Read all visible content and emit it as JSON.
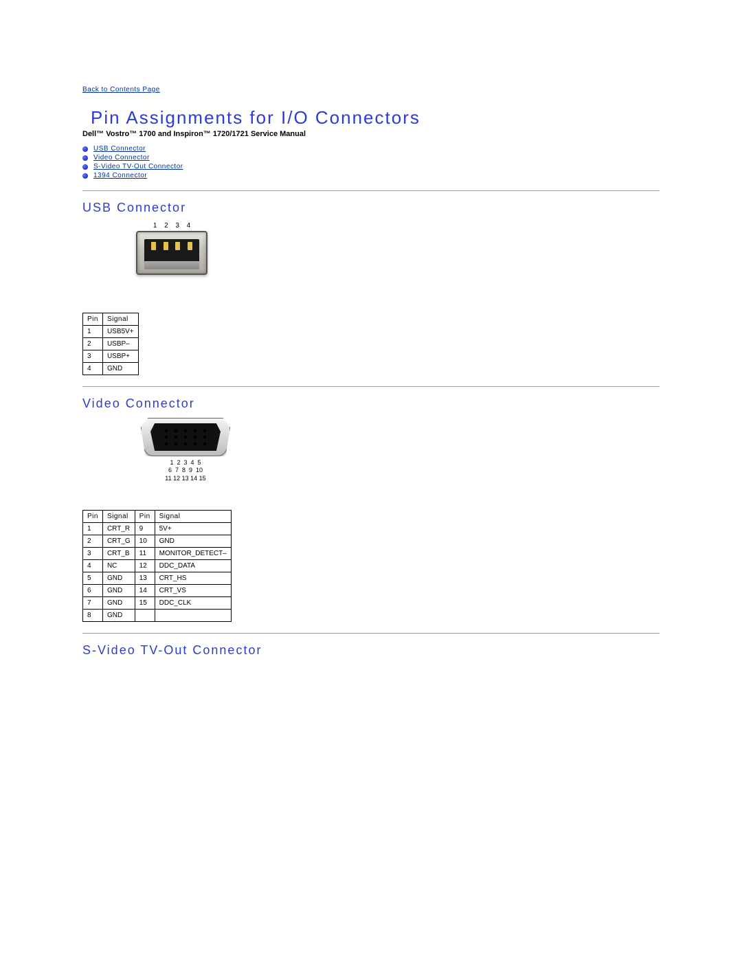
{
  "nav": {
    "back_link": "Back to Contents Page"
  },
  "header": {
    "title": "Pin Assignments for I/O Connectors",
    "subtitle": "Dell™ Vostro™ 1700 and Inspiron™ 1720/1721 Service Manual"
  },
  "toc": [
    "USB Connector",
    "Video Connector",
    "S-Video TV-Out Connector",
    "1394 Connector"
  ],
  "usb": {
    "heading": "USB Connector",
    "pin_header": "Pin",
    "signal_header": "Signal",
    "pin_labels": [
      "1",
      "2",
      "3",
      "4"
    ],
    "rows": [
      {
        "pin": "1",
        "signal": "USB5V+"
      },
      {
        "pin": "2",
        "signal": "USBP–"
      },
      {
        "pin": "3",
        "signal": "USBP+"
      },
      {
        "pin": "4",
        "signal": "GND"
      }
    ]
  },
  "video": {
    "heading": "Video Connector",
    "label_line1": "1  2  3  4  5",
    "label_line2": "6  7  8  9  10",
    "label_line3": "11 12 13 14 15",
    "col_pin": "Pin",
    "col_signal": "Signal",
    "rows": [
      {
        "p1": "1",
        "s1": "CRT_R",
        "p2": "9",
        "s2": "5V+"
      },
      {
        "p1": "2",
        "s1": "CRT_G",
        "p2": "10",
        "s2": "GND"
      },
      {
        "p1": "3",
        "s1": "CRT_B",
        "p2": "11",
        "s2": "MONITOR_DETECT–"
      },
      {
        "p1": "4",
        "s1": "NC",
        "p2": "12",
        "s2": "DDC_DATA"
      },
      {
        "p1": "5",
        "s1": "GND",
        "p2": "13",
        "s2": "CRT_HS"
      },
      {
        "p1": "6",
        "s1": "GND",
        "p2": "14",
        "s2": "CRT_VS"
      },
      {
        "p1": "7",
        "s1": "GND",
        "p2": "15",
        "s2": "DDC_CLK"
      },
      {
        "p1": "8",
        "s1": "GND",
        "p2": "",
        "s2": ""
      }
    ]
  },
  "svideo": {
    "heading": "S-Video TV-Out Connector"
  },
  "colors": {
    "link": "#003399",
    "heading": "#2a3cd6"
  }
}
